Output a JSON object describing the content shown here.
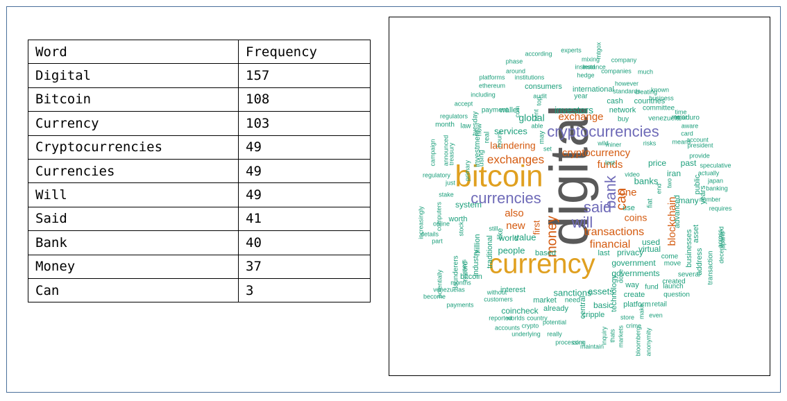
{
  "table": {
    "headers": [
      "Word",
      "Frequency"
    ],
    "rows": [
      [
        "Digital",
        "157"
      ],
      [
        "Bitcoin",
        "108"
      ],
      [
        "Currency",
        "103"
      ],
      [
        "Cryptocurrencies",
        "49"
      ],
      [
        "Currencies",
        "49"
      ],
      [
        "Will",
        "49"
      ],
      [
        "Said",
        "41"
      ],
      [
        "Bank",
        "40"
      ],
      [
        "Money",
        "37"
      ],
      [
        "Can",
        "3"
      ]
    ]
  },
  "colors": {
    "gray": "#595959",
    "gold": "#e0a020",
    "purple": "#6f6bb8",
    "orange": "#d45a0f",
    "teal": "#1a9e7a"
  },
  "wordcloud": [
    {
      "text": "digital",
      "color": "gray",
      "rot": -90
    },
    {
      "text": "bitcoin",
      "color": "gold",
      "rot": 0
    },
    {
      "text": "currency",
      "color": "gold",
      "rot": 0
    },
    {
      "text": "cryptocurrencies",
      "color": "purple",
      "rot": 0
    },
    {
      "text": "currencies",
      "color": "purple",
      "rot": 0
    },
    {
      "text": "will",
      "color": "purple",
      "rot": 0
    },
    {
      "text": "said",
      "color": "purple",
      "rot": 0
    },
    {
      "text": "bank",
      "color": "purple",
      "rot": -90
    },
    {
      "text": "money",
      "color": "orange",
      "rot": -90
    },
    {
      "text": "can",
      "color": "orange",
      "rot": -90
    },
    {
      "text": "exchanges",
      "color": "orange",
      "rot": 0
    },
    {
      "text": "cryptocurrency",
      "color": "orange",
      "rot": 0
    },
    {
      "text": "transactions",
      "color": "orange",
      "rot": 0
    },
    {
      "text": "financial",
      "color": "orange",
      "rot": 0
    },
    {
      "text": "exchange",
      "color": "orange",
      "rot": 0
    },
    {
      "text": "funds",
      "color": "orange",
      "rot": 0
    },
    {
      "text": "blockchain",
      "color": "orange",
      "rot": -90
    },
    {
      "text": "also",
      "color": "orange",
      "rot": 0
    },
    {
      "text": "new",
      "color": "orange",
      "rot": 0
    },
    {
      "text": "one",
      "color": "orange",
      "rot": 0
    },
    {
      "text": "coins",
      "color": "orange",
      "rot": 0
    },
    {
      "text": "laundering",
      "color": "orange",
      "rot": 0
    },
    {
      "text": "first",
      "color": "orange",
      "rot": -90
    },
    {
      "text": "investors",
      "color": "teal",
      "rot": 0
    },
    {
      "text": "global",
      "color": "teal",
      "rot": 0
    },
    {
      "text": "services",
      "color": "teal",
      "rot": 0
    },
    {
      "text": "banks",
      "color": "teal",
      "rot": 0
    },
    {
      "text": "price",
      "color": "teal",
      "rot": 0
    },
    {
      "text": "iran",
      "color": "teal",
      "rot": 0
    },
    {
      "text": "virtual",
      "color": "teal",
      "rot": 0
    },
    {
      "text": "used",
      "color": "teal",
      "rot": 0
    },
    {
      "text": "privacy",
      "color": "teal",
      "rot": 0
    },
    {
      "text": "government",
      "color": "teal",
      "rot": 0
    },
    {
      "text": "governments",
      "color": "teal",
      "rot": 0
    },
    {
      "text": "people",
      "color": "teal",
      "rot": 0
    },
    {
      "text": "value",
      "color": "teal",
      "rot": 0
    },
    {
      "text": "world",
      "color": "teal",
      "rot": 0
    },
    {
      "text": "sanctions",
      "color": "teal",
      "rot": 0
    },
    {
      "text": "assets",
      "color": "teal",
      "rot": 0
    },
    {
      "text": "interest",
      "color": "teal",
      "rot": 0
    },
    {
      "text": "market",
      "color": "teal",
      "rot": 0
    },
    {
      "text": "need",
      "color": "teal",
      "rot": 0
    },
    {
      "text": "coincheck",
      "color": "teal",
      "rot": 0
    },
    {
      "text": "already",
      "color": "teal",
      "rot": 0
    },
    {
      "text": "basic",
      "color": "teal",
      "rot": 0
    },
    {
      "text": "cripple",
      "color": "teal",
      "rot": 0
    },
    {
      "text": "platform",
      "color": "teal",
      "rot": 0
    },
    {
      "text": "retail",
      "color": "teal",
      "rot": 0
    },
    {
      "text": "network",
      "color": "teal",
      "rot": 0
    },
    {
      "text": "committee",
      "color": "teal",
      "rot": 0
    },
    {
      "text": "cash",
      "color": "teal",
      "rot": 0
    },
    {
      "text": "countries",
      "color": "teal",
      "rot": 0
    },
    {
      "text": "international",
      "color": "teal",
      "rot": 0
    },
    {
      "text": "consumers",
      "color": "teal",
      "rot": 0
    },
    {
      "text": "year",
      "color": "teal",
      "rot": 0
    },
    {
      "text": "buy",
      "color": "teal",
      "rot": 0
    },
    {
      "text": "venezuela",
      "color": "teal",
      "rot": 0
    },
    {
      "text": "maduro",
      "color": "teal",
      "rot": 0
    },
    {
      "text": "wallet",
      "color": "teal",
      "rot": 0
    },
    {
      "text": "payment",
      "color": "teal",
      "rot": 0
    },
    {
      "text": "advanced",
      "color": "teal",
      "rot": -90
    },
    {
      "text": "asset",
      "color": "teal",
      "rot": -90
    },
    {
      "text": "businesses",
      "color": "teal",
      "rot": -90
    },
    {
      "text": "address",
      "color": "teal",
      "rot": -90
    },
    {
      "text": "many",
      "color": "teal",
      "rot": 0
    },
    {
      "text": "past",
      "color": "teal",
      "rot": 0
    },
    {
      "text": "public",
      "color": "teal",
      "rot": -90
    },
    {
      "text": "years",
      "color": "teal",
      "rot": -90
    },
    {
      "text": "like",
      "color": "teal",
      "rot": -90
    },
    {
      "text": "traditional",
      "color": "teal",
      "rot": -90
    },
    {
      "text": "industry",
      "color": "teal",
      "rot": -90
    },
    {
      "text": "million",
      "color": "teal",
      "rot": -90
    },
    {
      "text": "system",
      "color": "teal",
      "rot": 0
    },
    {
      "text": "worth",
      "color": "teal",
      "rot": 0
    },
    {
      "text": "record",
      "color": "teal",
      "rot": -90
    },
    {
      "text": "launderers",
      "color": "teal",
      "rot": -90
    },
    {
      "text": "bitcoin",
      "color": "teal",
      "rot": 0
    },
    {
      "text": "last",
      "color": "teal",
      "rot": 0
    },
    {
      "text": "based",
      "color": "teal",
      "rot": 0
    },
    {
      "text": "way",
      "color": "teal",
      "rot": 0
    },
    {
      "text": "create",
      "color": "teal",
      "rot": 0
    },
    {
      "text": "central",
      "color": "teal",
      "rot": -90
    },
    {
      "text": "technology",
      "color": "teal",
      "rot": -90
    },
    {
      "text": "several",
      "color": "teal",
      "rot": 0
    },
    {
      "text": "fund",
      "color": "teal",
      "rot": 0
    },
    {
      "text": "launch",
      "color": "teal",
      "rot": 0
    },
    {
      "text": "question",
      "color": "teal",
      "rot": 0
    },
    {
      "text": "created",
      "color": "teal",
      "rot": 0
    },
    {
      "text": "move",
      "color": "teal",
      "rot": 0
    },
    {
      "text": "come",
      "color": "teal",
      "rot": 0
    },
    {
      "text": "transaction",
      "color": "teal",
      "rot": -90
    },
    {
      "text": "across",
      "color": "teal",
      "rot": -90
    },
    {
      "text": "decentralized",
      "color": "teal",
      "rot": -90
    },
    {
      "text": "japan",
      "color": "teal",
      "rot": 0
    },
    {
      "text": "japans",
      "color": "teal",
      "rot": -90
    },
    {
      "text": "requires",
      "color": "teal",
      "rot": 0
    },
    {
      "text": "number",
      "color": "teal",
      "rot": 0
    },
    {
      "text": "banking",
      "color": "teal",
      "rot": 0
    },
    {
      "text": "actually",
      "color": "teal",
      "rot": 0
    },
    {
      "text": "speculative",
      "color": "teal",
      "rot": 0
    },
    {
      "text": "provide",
      "color": "teal",
      "rot": 0
    },
    {
      "text": "president",
      "color": "teal",
      "rot": 0
    },
    {
      "text": "account",
      "color": "teal",
      "rot": 0
    },
    {
      "text": "card",
      "color": "teal",
      "rot": 0
    },
    {
      "text": "aware",
      "color": "teal",
      "rot": 0
    },
    {
      "text": "means",
      "color": "teal",
      "rot": 0
    },
    {
      "text": "major",
      "color": "teal",
      "rot": 0
    },
    {
      "text": "time",
      "color": "teal",
      "rot": 0
    },
    {
      "text": "business",
      "color": "teal",
      "rot": 0
    },
    {
      "text": "risks",
      "color": "teal",
      "rot": 0
    },
    {
      "text": "miner",
      "color": "teal",
      "rot": 0
    },
    {
      "text": "wild",
      "color": "teal",
      "rot": 0
    },
    {
      "text": "lost",
      "color": "teal",
      "rot": 0
    },
    {
      "text": "video",
      "color": "teal",
      "rot": 0
    },
    {
      "text": "fiat",
      "color": "teal",
      "rot": -90
    },
    {
      "text": "use",
      "color": "teal",
      "rot": 0
    },
    {
      "text": "end",
      "color": "teal",
      "rot": -90
    },
    {
      "text": "two",
      "color": "teal",
      "rot": -90
    },
    {
      "text": "still",
      "color": "teal",
      "rot": 0
    },
    {
      "text": "set",
      "color": "teal",
      "rot": 0
    },
    {
      "text": "able",
      "color": "teal",
      "rot": 0
    },
    {
      "text": "may",
      "color": "teal",
      "rot": -90
    },
    {
      "text": "real",
      "color": "teal",
      "rot": -90
    },
    {
      "text": "using",
      "color": "teal",
      "rot": -90
    },
    {
      "text": "investment",
      "color": "teal",
      "rot": -90
    },
    {
      "text": "tuesday",
      "color": "teal",
      "rot": -90
    },
    {
      "text": "now",
      "color": "teal",
      "rot": -90
    },
    {
      "text": "month",
      "color": "teal",
      "rot": 0
    },
    {
      "text": "law",
      "color": "teal",
      "rot": 0
    },
    {
      "text": "primary",
      "color": "teal",
      "rot": -90
    },
    {
      "text": "treasury",
      "color": "teal",
      "rot": -90
    },
    {
      "text": "announced",
      "color": "teal",
      "rot": -90
    },
    {
      "text": "campaign",
      "color": "teal",
      "rot": -90
    },
    {
      "text": "regulatory",
      "color": "teal",
      "rot": 0
    },
    {
      "text": "just",
      "color": "teal",
      "rot": 0
    },
    {
      "text": "increasingly",
      "color": "teal",
      "rot": -90
    },
    {
      "text": "computers",
      "color": "teal",
      "rot": -90
    },
    {
      "text": "stake",
      "color": "teal",
      "rot": 0
    },
    {
      "text": "online",
      "color": "teal",
      "rot": 0
    },
    {
      "text": "stock",
      "color": "teal",
      "rot": -90
    },
    {
      "text": "details",
      "color": "teal",
      "rot": 0
    },
    {
      "text": "part",
      "color": "teal",
      "rot": 0
    },
    {
      "text": "potentially",
      "color": "teal",
      "rot": -90
    },
    {
      "text": "users",
      "color": "teal",
      "rot": -90
    },
    {
      "text": "months",
      "color": "teal",
      "rot": 0
    },
    {
      "text": "venezuelas",
      "color": "teal",
      "rot": 0
    },
    {
      "text": "become",
      "color": "teal",
      "rot": 0
    },
    {
      "text": "payments",
      "color": "teal",
      "rot": 0
    },
    {
      "text": "customers",
      "color": "teal",
      "rot": 0
    },
    {
      "text": "without",
      "color": "teal",
      "rot": 0
    },
    {
      "text": "reported",
      "color": "teal",
      "rot": 0
    },
    {
      "text": "worlds",
      "color": "teal",
      "rot": 0
    },
    {
      "text": "country",
      "color": "teal",
      "rot": 0
    },
    {
      "text": "accounts",
      "color": "teal",
      "rot": 0
    },
    {
      "text": "crypto",
      "color": "teal",
      "rot": 0
    },
    {
      "text": "potential",
      "color": "teal",
      "rot": 0
    },
    {
      "text": "underlying",
      "color": "teal",
      "rot": 0
    },
    {
      "text": "really",
      "color": "teal",
      "rot": 0
    },
    {
      "text": "processing",
      "color": "teal",
      "rot": 0
    },
    {
      "text": "com",
      "color": "teal",
      "rot": 0
    },
    {
      "text": "maintain",
      "color": "teal",
      "rot": 0
    },
    {
      "text": "inquiry",
      "color": "teal",
      "rot": -90
    },
    {
      "text": "thats",
      "color": "teal",
      "rot": -90
    },
    {
      "text": "markets",
      "color": "teal",
      "rot": -90
    },
    {
      "text": "bloomberg",
      "color": "teal",
      "rot": -90
    },
    {
      "text": "anonymity",
      "color": "teal",
      "rot": -90
    },
    {
      "text": "crime",
      "color": "teal",
      "rot": 0
    },
    {
      "text": "store",
      "color": "teal",
      "rot": 0
    },
    {
      "text": "even",
      "color": "teal",
      "rot": 0
    },
    {
      "text": "make",
      "color": "teal",
      "rot": -90
    },
    {
      "text": "done",
      "color": "teal",
      "rot": -90
    },
    {
      "text": "regulators",
      "color": "teal",
      "rot": 0
    },
    {
      "text": "accept",
      "color": "teal",
      "rot": 0
    },
    {
      "text": "including",
      "color": "teal",
      "rot": 0
    },
    {
      "text": "ethereum",
      "color": "teal",
      "rot": 0
    },
    {
      "text": "platforms",
      "color": "teal",
      "rot": 0
    },
    {
      "text": "institutions",
      "color": "teal",
      "rot": 0
    },
    {
      "text": "around",
      "color": "teal",
      "rot": 0
    },
    {
      "text": "phase",
      "color": "teal",
      "rot": 0
    },
    {
      "text": "according",
      "color": "teal",
      "rot": 0
    },
    {
      "text": "experts",
      "color": "teal",
      "rot": 0
    },
    {
      "text": "instance",
      "color": "teal",
      "rot": 0
    },
    {
      "text": "mtgox",
      "color": "teal",
      "rot": -90
    },
    {
      "text": "mixing",
      "color": "teal",
      "rot": 0
    },
    {
      "text": "company",
      "color": "teal",
      "rot": 0
    },
    {
      "text": "instead",
      "color": "teal",
      "rot": 0
    },
    {
      "text": "hedge",
      "color": "teal",
      "rot": 0
    },
    {
      "text": "companies",
      "color": "teal",
      "rot": 0
    },
    {
      "text": "much",
      "color": "teal",
      "rot": 0
    },
    {
      "text": "however",
      "color": "teal",
      "rot": 0
    },
    {
      "text": "standards",
      "color": "teal",
      "rot": 0
    },
    {
      "text": "creating",
      "color": "teal",
      "rot": 0
    },
    {
      "text": "known",
      "color": "teal",
      "rot": 0
    },
    {
      "text": "hours",
      "color": "teal",
      "rot": -90
    },
    {
      "text": "coin",
      "color": "teal",
      "rot": -90
    },
    {
      "text": "audit",
      "color": "teal",
      "rot": 0
    },
    {
      "text": "cent",
      "color": "teal",
      "rot": -90
    },
    {
      "text": "top",
      "color": "teal",
      "rot": -90
    },
    {
      "text": "petro",
      "color": "teal",
      "rot": -90
    },
    {
      "text": "per",
      "color": "teal",
      "rot": -90
    }
  ]
}
